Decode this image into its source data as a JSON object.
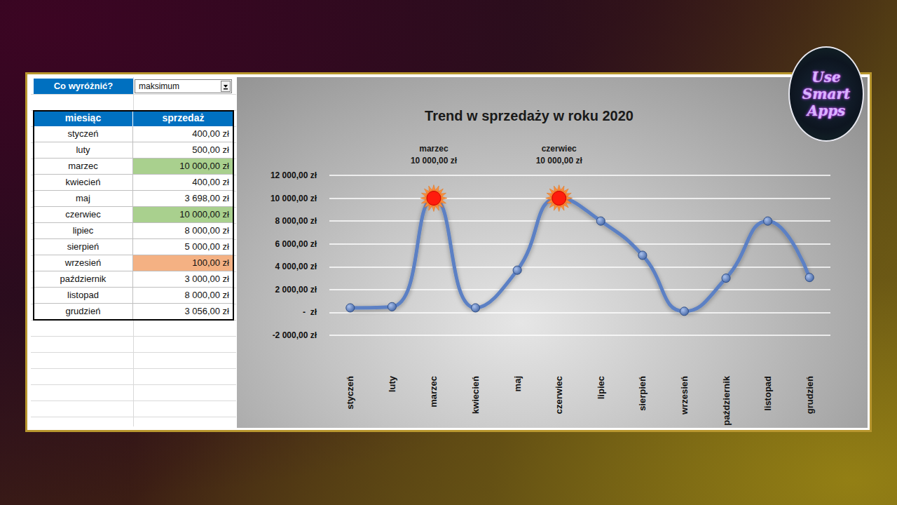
{
  "control": {
    "label": "Co wyróżnić?",
    "value": "maksimum"
  },
  "table": {
    "columns": [
      "miesiąc",
      "sprzedaż"
    ],
    "rows": [
      [
        "styczeń",
        "400,00 zł"
      ],
      [
        "luty",
        "500,00 zł"
      ],
      [
        "marzec",
        "10 000,00 zł"
      ],
      [
        "kwiecień",
        "400,00 zł"
      ],
      [
        "maj",
        "3 698,00 zł"
      ],
      [
        "czerwiec",
        "10 000,00 zł"
      ],
      [
        "lipiec",
        "8 000,00 zł"
      ],
      [
        "sierpień",
        "5 000,00 zł"
      ],
      [
        "wrzesień",
        "100,00 zł"
      ],
      [
        "październik",
        "3 000,00 zł"
      ],
      [
        "listopad",
        "8 000,00 zł"
      ],
      [
        "grudzień",
        "3 056,00 zł"
      ]
    ],
    "row_colors": [
      null,
      null,
      "#a9d08e",
      null,
      null,
      "#a9d08e",
      null,
      null,
      "#f4b183",
      null,
      null,
      null
    ]
  },
  "logo": {
    "lines": [
      "Use",
      "Smart",
      "Apps"
    ]
  },
  "chart_data": {
    "type": "line",
    "title": "Trend w sprzedaży w roku 2020",
    "categories": [
      "styczeń",
      "luty",
      "marzec",
      "kwiecień",
      "maj",
      "czerwiec",
      "lipiec",
      "sierpień",
      "wrzesień",
      "październik",
      "listopad",
      "grudzień"
    ],
    "values": [
      400,
      500,
      10000,
      400,
      3698,
      10000,
      8000,
      5000,
      100,
      3000,
      8000,
      3056
    ],
    "color": "#5b80c4",
    "line_style": "smooth",
    "marker": "circle",
    "ylim": [
      -2000,
      12000
    ],
    "yticks": [
      {
        "value": -2000,
        "label": "-2 000,00 zł"
      },
      {
        "value": 0,
        "label": "-  zł"
      },
      {
        "value": 2000,
        "label": "2 000,00 zł"
      },
      {
        "value": 4000,
        "label": "4 000,00 zł"
      },
      {
        "value": 6000,
        "label": "6 000,00 zł"
      },
      {
        "value": 8000,
        "label": "8 000,00 zł"
      },
      {
        "value": 10000,
        "label": "10 000,00 zł"
      },
      {
        "value": 12000,
        "label": "12 000,00 zł"
      }
    ],
    "grid": true,
    "annotations": [
      {
        "category": "marzec",
        "value": 10000,
        "label": "10 000,00 zł"
      },
      {
        "category": "czerwiec",
        "value": 10000,
        "label": "10 000,00 zł"
      }
    ]
  }
}
